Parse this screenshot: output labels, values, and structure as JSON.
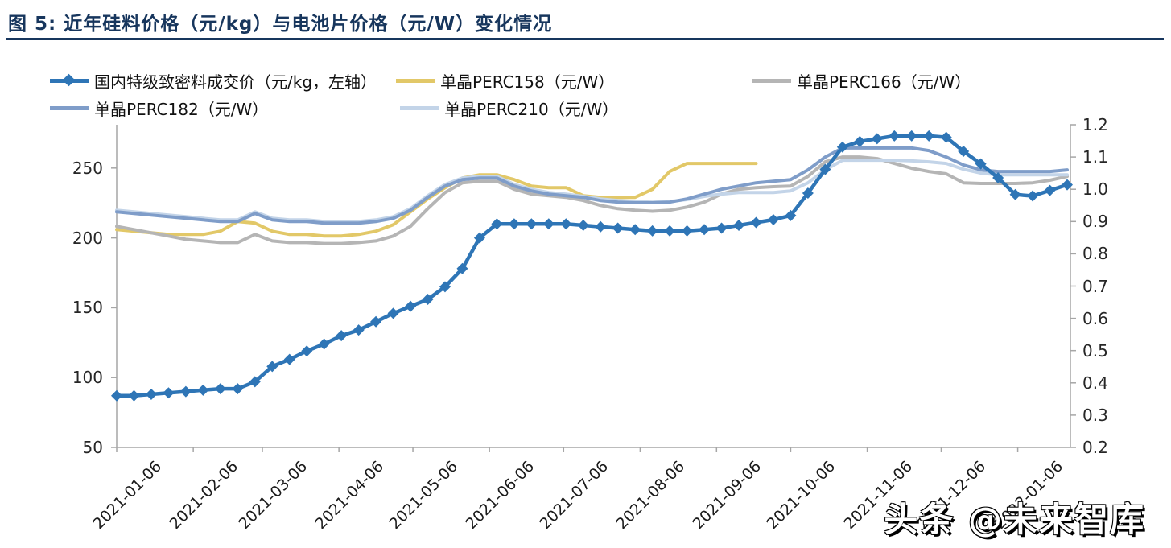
{
  "header": {
    "title": "图 5:  近年硅料价格（元/kg）与电池片价格（元/W）变化情况",
    "title_color": "#17365d"
  },
  "watermark": {
    "text": "头条 @未来智库"
  },
  "chart_data": {
    "type": "line",
    "title": "近年硅料价格（元/kg）与电池片价格（元/W）变化情况",
    "n_points": 56,
    "x_tick_labels": [
      "2021-01-06",
      "2021-02-06",
      "2021-03-06",
      "2021-04-06",
      "2021-05-06",
      "2021-06-06",
      "2021-07-06",
      "2021-08-06",
      "2021-09-06",
      "2021-10-06",
      "2021-11-06",
      "2021-12-06",
      "2022-01-06"
    ],
    "x_tick_positions_weeks": [
      0,
      4.43,
      8.43,
      12.86,
      17.14,
      21.57,
      25.86,
      30.29,
      34.71,
      39.0,
      43.43,
      47.71,
      52.14
    ],
    "left_axis": {
      "unit": "元/kg",
      "min": 50,
      "max": 281,
      "ticks": [
        50,
        100,
        150,
        200,
        250
      ]
    },
    "right_axis": {
      "unit": "元/W",
      "min": 0.2,
      "max": 1.2,
      "ticks": [
        0.2,
        0.3,
        0.4,
        0.5,
        0.6,
        0.7,
        0.8,
        0.9,
        1.0,
        1.1,
        1.2
      ]
    },
    "grid": false,
    "legend_position": "top-left",
    "series": [
      {
        "key": "dense-poly-price",
        "name": "国内特级致密料成交价（元/kg，左轴）",
        "axis": "left",
        "color": "#2e75b6",
        "marker": "diamond",
        "values": [
          87,
          87,
          88,
          89,
          90,
          91,
          92,
          92,
          97,
          108,
          113,
          119,
          124,
          130,
          134,
          140,
          146,
          151,
          156,
          165,
          178,
          200,
          210,
          210,
          210,
          210,
          210,
          209,
          208,
          207,
          206,
          205,
          205,
          205,
          206,
          207,
          209,
          211,
          213,
          216,
          232,
          249,
          265,
          269,
          271,
          273,
          273,
          273,
          272,
          262,
          253,
          243,
          231,
          230,
          234,
          238
        ]
      },
      {
        "key": "perc158",
        "name": "单晶PERC158（元/W）",
        "axis": "right",
        "color": "#e2c868",
        "marker": "none",
        "values": [
          0.875,
          0.87,
          0.865,
          0.86,
          0.86,
          0.86,
          0.87,
          0.9,
          0.895,
          0.87,
          0.86,
          0.86,
          0.855,
          0.855,
          0.86,
          0.87,
          0.89,
          0.93,
          0.97,
          1.005,
          1.035,
          1.045,
          1.045,
          1.03,
          1.01,
          1.005,
          1.005,
          0.98,
          0.975,
          0.975,
          0.975,
          1.0,
          1.055,
          1.08,
          1.08,
          1.08,
          1.08,
          1.08,
          null,
          null,
          null,
          null,
          null,
          null,
          null,
          null,
          null,
          null,
          null,
          null,
          null,
          null,
          null,
          null,
          null,
          null
        ]
      },
      {
        "key": "perc166",
        "name": "单晶PERC166（元/W）",
        "axis": "right",
        "color": "#b5b5b5",
        "marker": "none",
        "values": [
          0.885,
          0.875,
          0.865,
          0.855,
          0.845,
          0.84,
          0.835,
          0.835,
          0.86,
          0.84,
          0.835,
          0.835,
          0.832,
          0.832,
          0.835,
          0.84,
          0.855,
          0.885,
          0.94,
          0.99,
          1.02,
          1.025,
          1.025,
          1.0,
          0.985,
          0.98,
          0.975,
          0.965,
          0.95,
          0.94,
          0.935,
          0.932,
          0.935,
          0.945,
          0.96,
          0.985,
          1.0,
          1.005,
          1.008,
          1.01,
          1.04,
          1.085,
          1.1,
          1.1,
          1.095,
          1.08,
          1.065,
          1.055,
          1.048,
          1.02,
          1.018,
          1.018,
          1.018,
          1.02,
          1.028,
          1.04
        ]
      },
      {
        "key": "perc182",
        "name": "单晶PERC182（元/W）",
        "axis": "right",
        "color": "#7f9dc9",
        "marker": "none",
        "values": [
          0.93,
          0.925,
          0.92,
          0.915,
          0.91,
          0.905,
          0.9,
          0.9,
          0.925,
          0.905,
          0.9,
          0.9,
          0.895,
          0.895,
          0.895,
          0.9,
          0.91,
          0.935,
          0.975,
          1.01,
          1.03,
          1.035,
          1.035,
          1.01,
          0.995,
          0.985,
          0.98,
          0.975,
          0.965,
          0.96,
          0.958,
          0.958,
          0.96,
          0.97,
          0.985,
          1.0,
          1.01,
          1.02,
          1.025,
          1.03,
          1.06,
          1.1,
          1.128,
          1.128,
          1.128,
          1.128,
          1.128,
          1.12,
          1.1,
          1.075,
          1.06,
          1.055,
          1.055,
          1.055,
          1.055,
          1.06
        ]
      },
      {
        "key": "perc210",
        "name": "单晶PERC210（元/W）",
        "axis": "right",
        "color": "#c3d4e8",
        "marker": "none",
        "values": [
          0.935,
          0.93,
          0.925,
          0.92,
          0.915,
          0.91,
          0.905,
          0.905,
          0.93,
          0.91,
          0.905,
          0.905,
          0.9,
          0.9,
          0.9,
          0.905,
          0.915,
          0.94,
          0.98,
          1.015,
          1.035,
          1.04,
          1.04,
          1.015,
          1.0,
          0.99,
          0.985,
          0.978,
          0.97,
          0.965,
          0.962,
          0.96,
          0.962,
          0.968,
          0.978,
          0.985,
          0.99,
          0.99,
          0.99,
          0.995,
          1.02,
          1.06,
          1.09,
          1.09,
          1.09,
          1.09,
          1.088,
          1.085,
          1.08,
          1.062,
          1.05,
          1.045,
          1.045,
          1.045,
          1.045,
          1.045
        ]
      }
    ]
  }
}
